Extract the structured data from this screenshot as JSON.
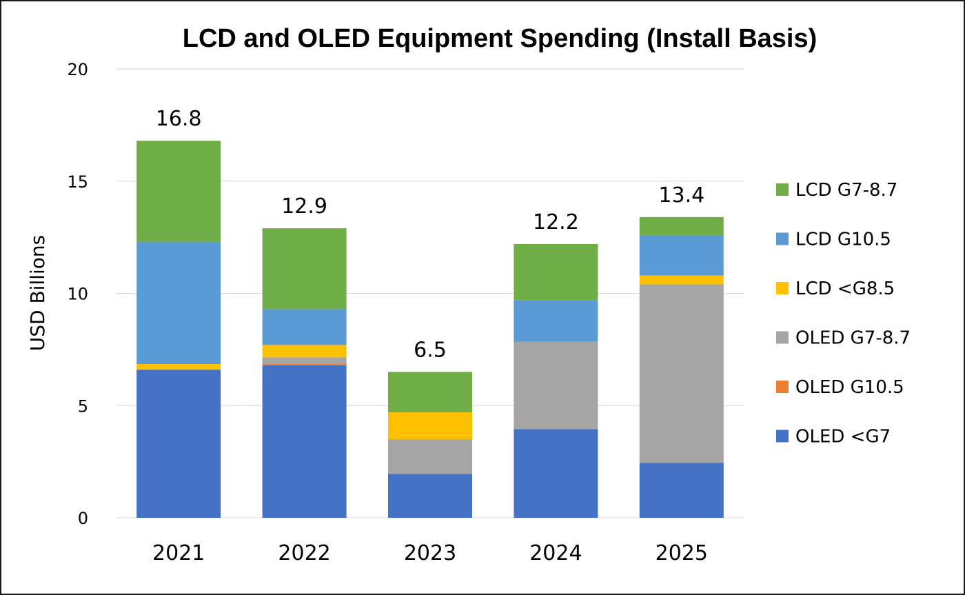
{
  "chart_data": {
    "type": "bar",
    "stacked": true,
    "title": "LCD and OLED Equipment Spending (Install Basis)",
    "ylabel": "USD Billions",
    "xlabel": "",
    "ylim": [
      0,
      20
    ],
    "yticks": [
      0,
      5,
      10,
      15,
      20
    ],
    "grid": true,
    "legend_position": "right",
    "categories": [
      "2021",
      "2022",
      "2023",
      "2024",
      "2025"
    ],
    "totals": [
      16.8,
      12.9,
      6.5,
      12.2,
      13.4
    ],
    "series": [
      {
        "name": "OLED <G7",
        "color": "#4472c4",
        "values": [
          6.6,
          6.8,
          1.95,
          3.95,
          2.45
        ]
      },
      {
        "name": "OLED G10.5",
        "color": "#ed7d31",
        "values": [
          0.0,
          0.05,
          0.0,
          0.0,
          0.0
        ]
      },
      {
        "name": "OLED G7-8.7",
        "color": "#a5a5a5",
        "values": [
          0.0,
          0.3,
          1.55,
          3.9,
          7.95
        ]
      },
      {
        "name": "LCD <G8.5",
        "color": "#ffc000",
        "values": [
          0.25,
          0.55,
          1.2,
          0.0,
          0.4
        ]
      },
      {
        "name": "LCD G10.5",
        "color": "#5b9bd5",
        "values": [
          5.45,
          1.6,
          0.0,
          1.85,
          1.8
        ]
      },
      {
        "name": "LCD G7-8.7",
        "color": "#70ad47",
        "values": [
          4.5,
          3.6,
          1.8,
          2.5,
          0.8
        ]
      }
    ],
    "legend_order": [
      "LCD G7-8.7",
      "LCD G10.5",
      "LCD <G8.5",
      "OLED G7-8.7",
      "OLED G10.5",
      "OLED <G7"
    ]
  }
}
